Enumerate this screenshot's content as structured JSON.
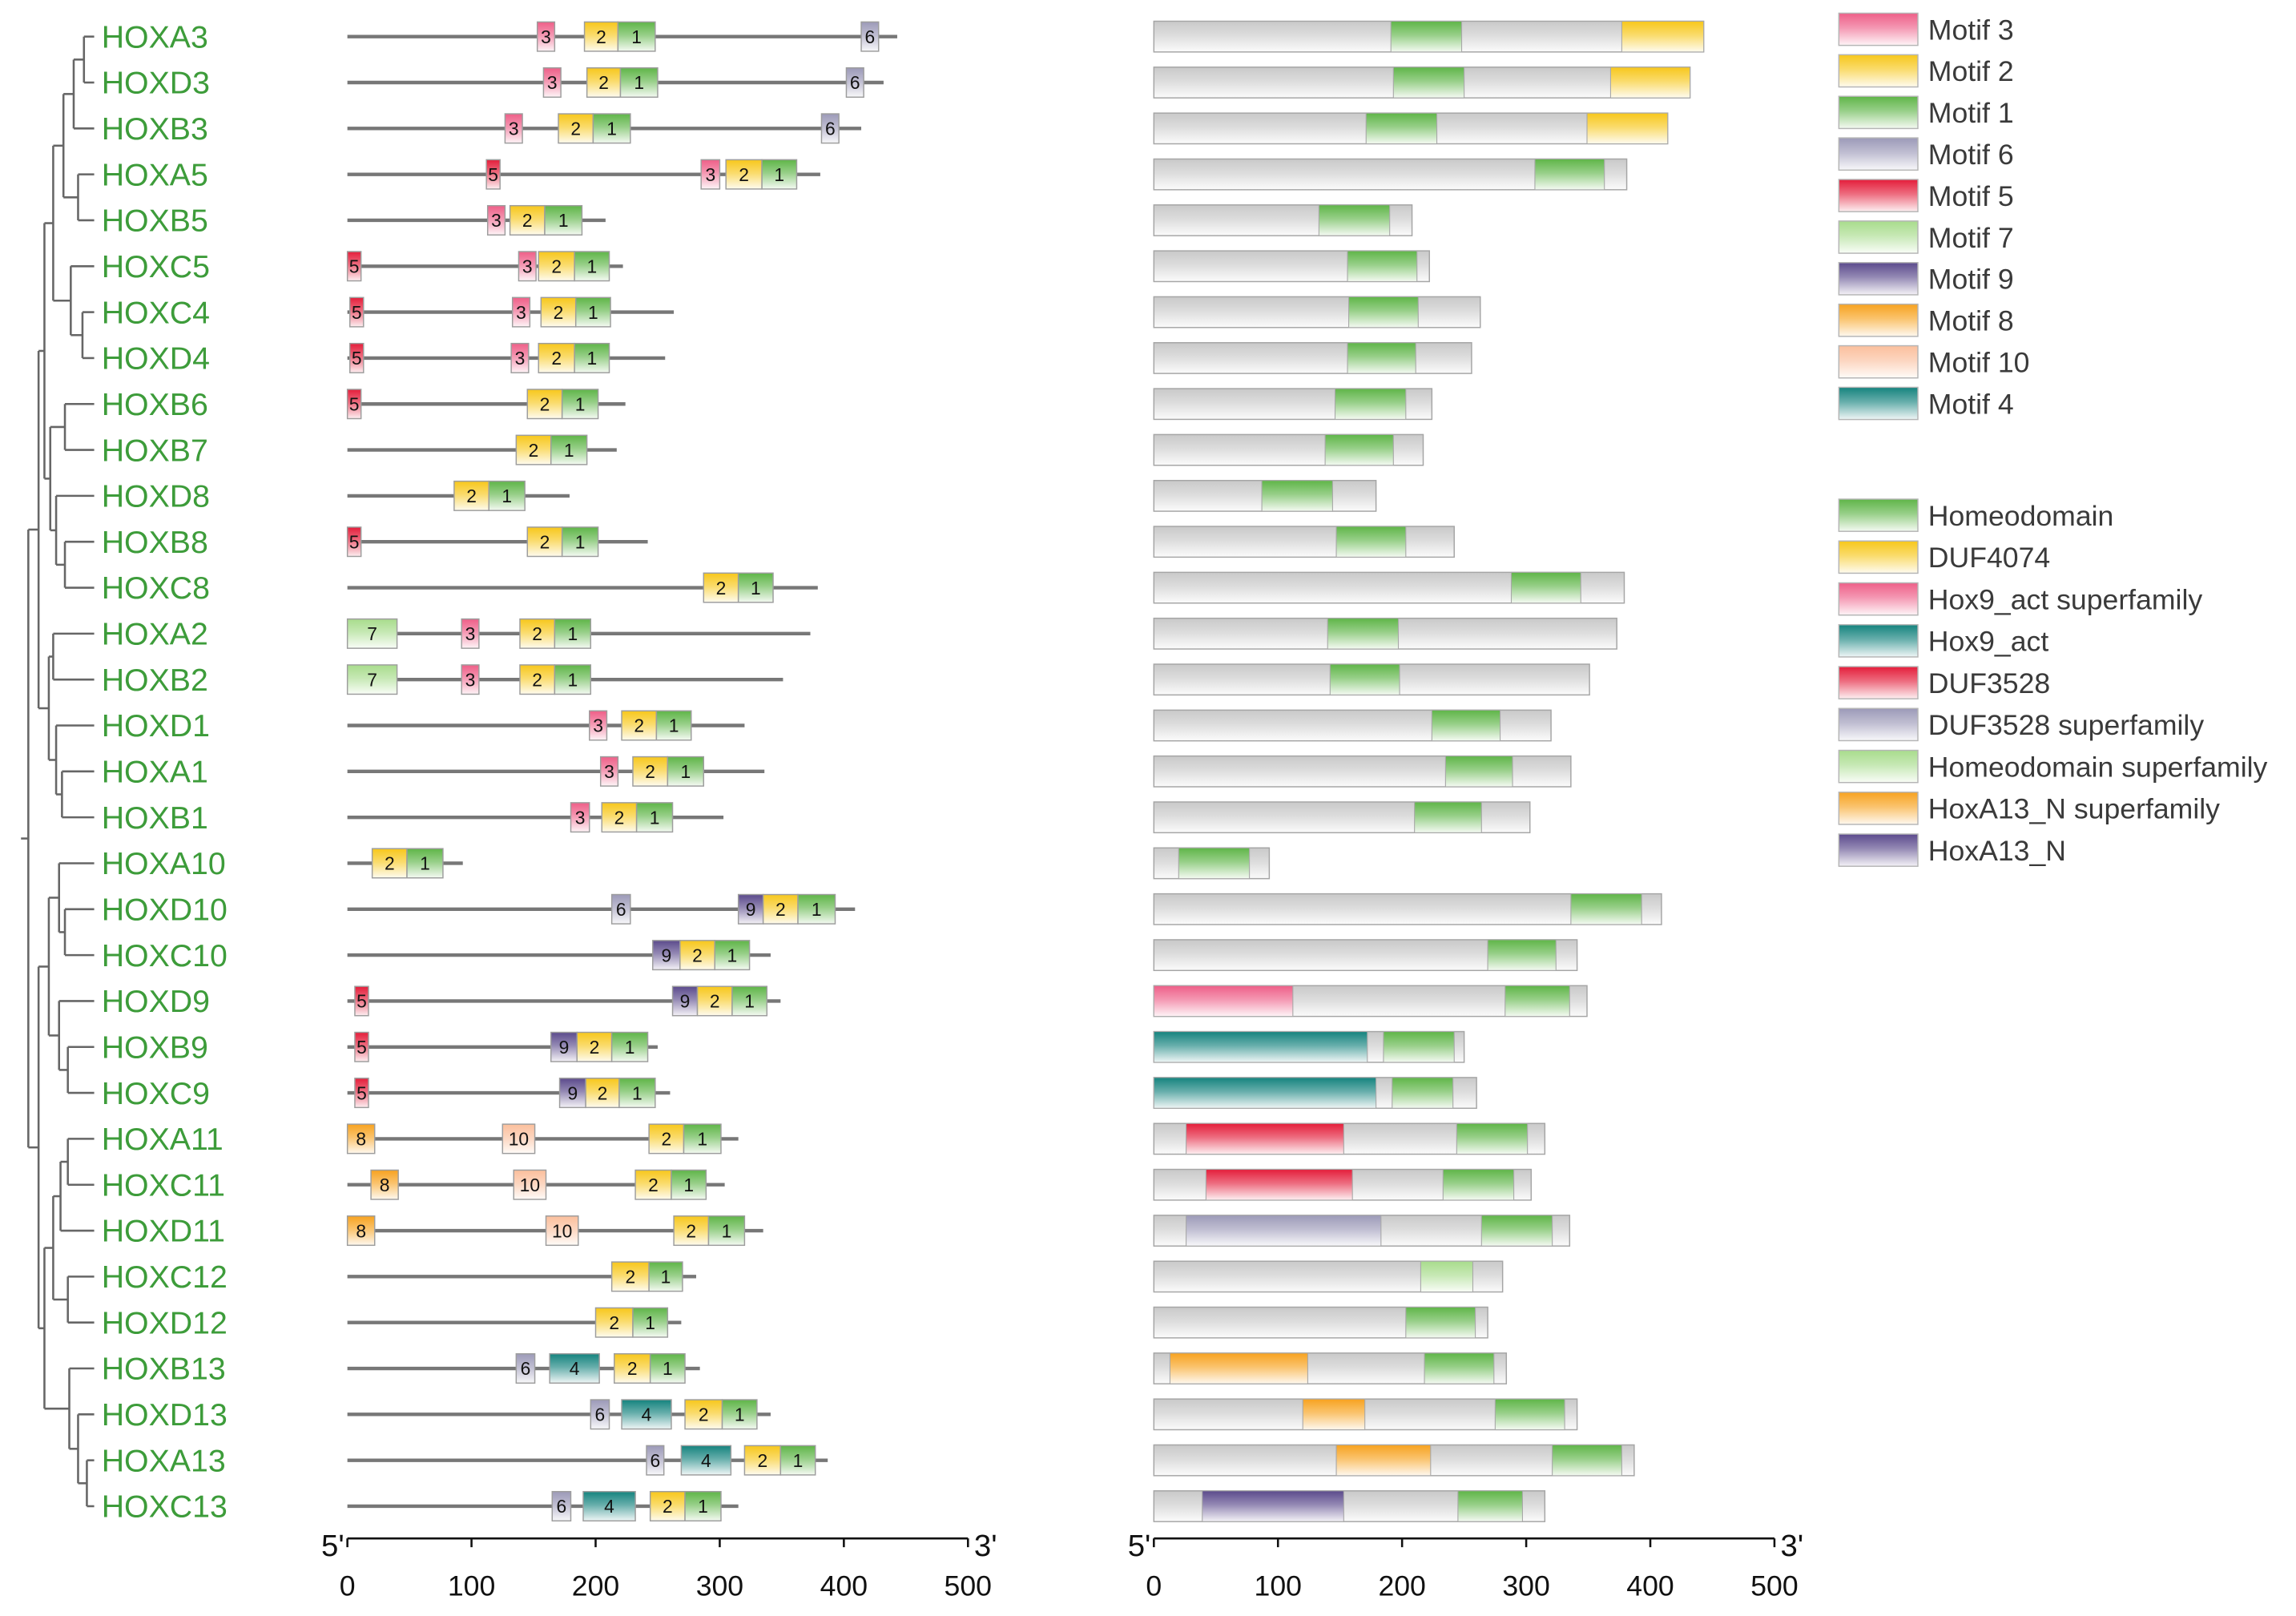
{
  "colors": {
    "gene_label": "#3d9c3a",
    "protein_bar": "#c9c9c9",
    "backbone": "#777777",
    "tree": "#666666",
    "box_stroke": "#9d9d9d"
  },
  "motif_axis": {
    "left_end": "5'",
    "right_end": "3'",
    "max": 500,
    "ticks": [
      "0",
      "100",
      "200",
      "300",
      "400",
      "500"
    ]
  },
  "domain_axis": {
    "left_end": "5'",
    "right_end": "3'",
    "max": 500,
    "ticks": [
      "0",
      "100",
      "200",
      "300",
      "400",
      "500"
    ]
  },
  "motif_legend": [
    {
      "label": "Motif 3",
      "color": "#ee5f88"
    },
    {
      "label": "Motif 2",
      "color": "#f7c71b"
    },
    {
      "label": "Motif 1",
      "color": "#5fb548"
    },
    {
      "label": "Motif 6",
      "color": "#9c9ab8"
    },
    {
      "label": "Motif 5",
      "color": "#e41d3a"
    },
    {
      "label": "Motif 7",
      "color": "#a8dc8c"
    },
    {
      "label": "Motif 9",
      "color": "#5b4a8c"
    },
    {
      "label": "Motif 8",
      "color": "#f7a21f"
    },
    {
      "label": "Motif 10",
      "color": "#fbbf9c"
    },
    {
      "label": "Motif 4",
      "color": "#14837e"
    }
  ],
  "domain_legend": [
    {
      "label": "Homeodomain",
      "color": "#5fb548"
    },
    {
      "label": "DUF4074",
      "color": "#f7c71b"
    },
    {
      "label": "Hox9_act superfamily",
      "color": "#ee5f88"
    },
    {
      "label": "Hox9_act",
      "color": "#14837e"
    },
    {
      "label": "DUF3528",
      "color": "#e41d3a"
    },
    {
      "label": "DUF3528 superfamily",
      "color": "#9c9ab8"
    },
    {
      "label": "Homeodomain superfamily",
      "color": "#a8dc8c"
    },
    {
      "label": "HoxA13_N superfamily",
      "color": "#f7a21f"
    },
    {
      "label": "HoxA13_N",
      "color": "#5b4a8c"
    }
  ],
  "genes": [
    {
      "name": "HOXA3",
      "length": 443,
      "motifs": [
        {
          "label": "3",
          "start": 153,
          "end": 167
        },
        {
          "label": "2",
          "start": 191,
          "end": 218
        },
        {
          "label": "1",
          "start": 218,
          "end": 248
        },
        {
          "label": "6",
          "start": 414,
          "end": 428
        }
      ],
      "domains": [
        {
          "d": 0,
          "start": 191,
          "end": 248
        },
        {
          "d": 1,
          "start": 377,
          "end": 443
        }
      ]
    },
    {
      "name": "HOXD3",
      "length": 432,
      "motifs": [
        {
          "label": "3",
          "start": 158,
          "end": 172
        },
        {
          "label": "2",
          "start": 193,
          "end": 220
        },
        {
          "label": "1",
          "start": 220,
          "end": 250
        },
        {
          "label": "6",
          "start": 402,
          "end": 416
        }
      ],
      "domains": [
        {
          "d": 0,
          "start": 193,
          "end": 250
        },
        {
          "d": 1,
          "start": 368,
          "end": 432
        }
      ]
    },
    {
      "name": "HOXB3",
      "length": 414,
      "motifs": [
        {
          "label": "3",
          "start": 127,
          "end": 141
        },
        {
          "label": "2",
          "start": 170,
          "end": 198
        },
        {
          "label": "1",
          "start": 198,
          "end": 228
        },
        {
          "label": "6",
          "start": 382,
          "end": 396
        }
      ],
      "domains": [
        {
          "d": 0,
          "start": 171,
          "end": 228
        },
        {
          "d": 1,
          "start": 349,
          "end": 414
        }
      ]
    },
    {
      "name": "HOXA5",
      "length": 381,
      "motifs": [
        {
          "label": "5",
          "start": 112,
          "end": 123
        },
        {
          "label": "3",
          "start": 285,
          "end": 300
        },
        {
          "label": "2",
          "start": 305,
          "end": 334
        },
        {
          "label": "1",
          "start": 334,
          "end": 362
        }
      ],
      "domains": [
        {
          "d": 0,
          "start": 307,
          "end": 363
        }
      ]
    },
    {
      "name": "HOXB5",
      "length": 208,
      "motifs": [
        {
          "label": "3",
          "start": 113,
          "end": 127
        },
        {
          "label": "2",
          "start": 131,
          "end": 159
        },
        {
          "label": "1",
          "start": 159,
          "end": 189
        }
      ],
      "domains": [
        {
          "d": 0,
          "start": 133,
          "end": 190
        }
      ]
    },
    {
      "name": "HOXC5",
      "length": 222,
      "motifs": [
        {
          "label": "5",
          "start": 0,
          "end": 11
        },
        {
          "label": "3",
          "start": 138,
          "end": 152
        },
        {
          "label": "2",
          "start": 154,
          "end": 183
        },
        {
          "label": "1",
          "start": 183,
          "end": 211
        }
      ],
      "domains": [
        {
          "d": 0,
          "start": 156,
          "end": 212
        }
      ]
    },
    {
      "name": "HOXC4",
      "length": 263,
      "motifs": [
        {
          "label": "5",
          "start": 2,
          "end": 13
        },
        {
          "label": "3",
          "start": 133,
          "end": 147
        },
        {
          "label": "2",
          "start": 156,
          "end": 184
        },
        {
          "label": "1",
          "start": 184,
          "end": 212
        }
      ],
      "domains": [
        {
          "d": 0,
          "start": 157,
          "end": 213
        }
      ]
    },
    {
      "name": "HOXD4",
      "length": 256,
      "motifs": [
        {
          "label": "5",
          "start": 2,
          "end": 13
        },
        {
          "label": "3",
          "start": 132,
          "end": 146
        },
        {
          "label": "2",
          "start": 154,
          "end": 183
        },
        {
          "label": "1",
          "start": 183,
          "end": 211
        }
      ],
      "domains": [
        {
          "d": 0,
          "start": 156,
          "end": 211
        }
      ]
    },
    {
      "name": "HOXB6",
      "length": 224,
      "motifs": [
        {
          "label": "5",
          "start": 0,
          "end": 11
        },
        {
          "label": "2",
          "start": 145,
          "end": 173
        },
        {
          "label": "1",
          "start": 173,
          "end": 202
        }
      ],
      "domains": [
        {
          "d": 0,
          "start": 146,
          "end": 203
        }
      ]
    },
    {
      "name": "HOXB7",
      "length": 217,
      "motifs": [
        {
          "label": "2",
          "start": 136,
          "end": 164
        },
        {
          "label": "1",
          "start": 164,
          "end": 193
        }
      ],
      "domains": [
        {
          "d": 0,
          "start": 138,
          "end": 193
        }
      ]
    },
    {
      "name": "HOXD8",
      "length": 179,
      "motifs": [
        {
          "label": "2",
          "start": 86,
          "end": 114
        },
        {
          "label": "1",
          "start": 114,
          "end": 143
        }
      ],
      "domains": [
        {
          "d": 0,
          "start": 87,
          "end": 144
        }
      ]
    },
    {
      "name": "HOXB8",
      "length": 242,
      "motifs": [
        {
          "label": "5",
          "start": 0,
          "end": 11
        },
        {
          "label": "2",
          "start": 145,
          "end": 173
        },
        {
          "label": "1",
          "start": 173,
          "end": 202
        }
      ],
      "domains": [
        {
          "d": 0,
          "start": 147,
          "end": 203
        }
      ]
    },
    {
      "name": "HOXC8",
      "length": 379,
      "motifs": [
        {
          "label": "2",
          "start": 287,
          "end": 315
        },
        {
          "label": "1",
          "start": 315,
          "end": 343
        }
      ],
      "domains": [
        {
          "d": 0,
          "start": 288,
          "end": 344
        }
      ]
    },
    {
      "name": "HOXA2",
      "length": 373,
      "motifs": [
        {
          "label": "7",
          "start": 0,
          "end": 40
        },
        {
          "label": "3",
          "start": 92,
          "end": 106
        },
        {
          "label": "2",
          "start": 139,
          "end": 167
        },
        {
          "label": "1",
          "start": 167,
          "end": 196
        }
      ],
      "domains": [
        {
          "d": 0,
          "start": 140,
          "end": 197
        }
      ]
    },
    {
      "name": "HOXB2",
      "length": 351,
      "motifs": [
        {
          "label": "7",
          "start": 0,
          "end": 40
        },
        {
          "label": "3",
          "start": 92,
          "end": 106
        },
        {
          "label": "2",
          "start": 139,
          "end": 167
        },
        {
          "label": "1",
          "start": 167,
          "end": 196
        }
      ],
      "domains": [
        {
          "d": 0,
          "start": 142,
          "end": 198
        }
      ]
    },
    {
      "name": "HOXD1",
      "length": 320,
      "motifs": [
        {
          "label": "3",
          "start": 195,
          "end": 209
        },
        {
          "label": "2",
          "start": 221,
          "end": 249
        },
        {
          "label": "1",
          "start": 249,
          "end": 277
        }
      ],
      "domains": [
        {
          "d": 0,
          "start": 224,
          "end": 279
        }
      ]
    },
    {
      "name": "HOXA1",
      "length": 336,
      "motifs": [
        {
          "label": "3",
          "start": 204,
          "end": 218
        },
        {
          "label": "2",
          "start": 230,
          "end": 258
        },
        {
          "label": "1",
          "start": 258,
          "end": 287
        }
      ],
      "domains": [
        {
          "d": 0,
          "start": 235,
          "end": 289
        }
      ]
    },
    {
      "name": "HOXB1",
      "length": 303,
      "motifs": [
        {
          "label": "3",
          "start": 180,
          "end": 195
        },
        {
          "label": "2",
          "start": 205,
          "end": 233
        },
        {
          "label": "1",
          "start": 233,
          "end": 262
        }
      ],
      "domains": [
        {
          "d": 0,
          "start": 210,
          "end": 264
        }
      ]
    },
    {
      "name": "HOXA10",
      "length": 93,
      "motifs": [
        {
          "label": "2",
          "start": 20,
          "end": 48
        },
        {
          "label": "1",
          "start": 48,
          "end": 77
        }
      ],
      "domains": [
        {
          "d": 0,
          "start": 20,
          "end": 77
        }
      ]
    },
    {
      "name": "HOXD10",
      "length": 409,
      "motifs": [
        {
          "label": "6",
          "start": 213,
          "end": 228
        },
        {
          "label": "9",
          "start": 315,
          "end": 335
        },
        {
          "label": "2",
          "start": 335,
          "end": 363
        },
        {
          "label": "1",
          "start": 363,
          "end": 393
        }
      ],
      "domains": [
        {
          "d": 0,
          "start": 336,
          "end": 393
        }
      ]
    },
    {
      "name": "HOXC10",
      "length": 341,
      "motifs": [
        {
          "label": "9",
          "start": 246,
          "end": 268
        },
        {
          "label": "2",
          "start": 268,
          "end": 296
        },
        {
          "label": "1",
          "start": 296,
          "end": 324
        }
      ],
      "domains": [
        {
          "d": 0,
          "start": 269,
          "end": 324
        }
      ]
    },
    {
      "name": "HOXD9",
      "length": 349,
      "motifs": [
        {
          "label": "5",
          "start": 6,
          "end": 17
        },
        {
          "label": "9",
          "start": 262,
          "end": 282
        },
        {
          "label": "2",
          "start": 282,
          "end": 310
        },
        {
          "label": "1",
          "start": 310,
          "end": 338
        }
      ],
      "domains": [
        {
          "d": 2,
          "start": 0,
          "end": 112
        },
        {
          "d": 0,
          "start": 283,
          "end": 335
        }
      ]
    },
    {
      "name": "HOXB9",
      "length": 250,
      "motifs": [
        {
          "label": "5",
          "start": 6,
          "end": 17
        },
        {
          "label": "9",
          "start": 164,
          "end": 185
        },
        {
          "label": "2",
          "start": 185,
          "end": 213
        },
        {
          "label": "1",
          "start": 213,
          "end": 242
        }
      ],
      "domains": [
        {
          "d": 3,
          "start": 0,
          "end": 172
        },
        {
          "d": 0,
          "start": 185,
          "end": 242
        }
      ]
    },
    {
      "name": "HOXC9",
      "length": 260,
      "motifs": [
        {
          "label": "5",
          "start": 6,
          "end": 17
        },
        {
          "label": "9",
          "start": 171,
          "end": 192
        },
        {
          "label": "2",
          "start": 192,
          "end": 219
        },
        {
          "label": "1",
          "start": 219,
          "end": 248
        }
      ],
      "domains": [
        {
          "d": 3,
          "start": 0,
          "end": 179
        },
        {
          "d": 0,
          "start": 192,
          "end": 241
        }
      ]
    },
    {
      "name": "HOXA11",
      "length": 315,
      "motifs": [
        {
          "label": "8",
          "start": 0,
          "end": 22
        },
        {
          "label": "10",
          "start": 125,
          "end": 151
        },
        {
          "label": "2",
          "start": 243,
          "end": 271
        },
        {
          "label": "1",
          "start": 271,
          "end": 301
        }
      ],
      "domains": [
        {
          "d": 4,
          "start": 26,
          "end": 153
        },
        {
          "d": 0,
          "start": 244,
          "end": 301
        }
      ]
    },
    {
      "name": "HOXC11",
      "length": 304,
      "motifs": [
        {
          "label": "8",
          "start": 19,
          "end": 41
        },
        {
          "label": "10",
          "start": 134,
          "end": 160
        },
        {
          "label": "2",
          "start": 232,
          "end": 261
        },
        {
          "label": "1",
          "start": 261,
          "end": 289
        }
      ],
      "domains": [
        {
          "d": 4,
          "start": 42,
          "end": 160
        },
        {
          "d": 0,
          "start": 233,
          "end": 290
        }
      ]
    },
    {
      "name": "HOXD11",
      "length": 335,
      "motifs": [
        {
          "label": "8",
          "start": 0,
          "end": 22
        },
        {
          "label": "10",
          "start": 160,
          "end": 186
        },
        {
          "label": "2",
          "start": 263,
          "end": 291
        },
        {
          "label": "1",
          "start": 291,
          "end": 320
        }
      ],
      "domains": [
        {
          "d": 5,
          "start": 26,
          "end": 183
        },
        {
          "d": 0,
          "start": 264,
          "end": 321
        }
      ]
    },
    {
      "name": "HOXC12",
      "length": 281,
      "motifs": [
        {
          "label": "2",
          "start": 213,
          "end": 243
        },
        {
          "label": "1",
          "start": 243,
          "end": 270
        }
      ],
      "domains": [
        {
          "d": 6,
          "start": 215,
          "end": 257
        }
      ]
    },
    {
      "name": "HOXD12",
      "length": 269,
      "motifs": [
        {
          "label": "2",
          "start": 200,
          "end": 230
        },
        {
          "label": "1",
          "start": 230,
          "end": 258
        }
      ],
      "domains": [
        {
          "d": 0,
          "start": 203,
          "end": 259
        }
      ]
    },
    {
      "name": "HOXB13",
      "length": 284,
      "motifs": [
        {
          "label": "6",
          "start": 136,
          "end": 151
        },
        {
          "label": "4",
          "start": 163,
          "end": 203
        },
        {
          "label": "2",
          "start": 215,
          "end": 244
        },
        {
          "label": "1",
          "start": 244,
          "end": 272
        }
      ],
      "domains": [
        {
          "d": 7,
          "start": 13,
          "end": 124
        },
        {
          "d": 0,
          "start": 218,
          "end": 274
        }
      ]
    },
    {
      "name": "HOXD13",
      "length": 341,
      "motifs": [
        {
          "label": "6",
          "start": 196,
          "end": 211
        },
        {
          "label": "4",
          "start": 221,
          "end": 261
        },
        {
          "label": "2",
          "start": 272,
          "end": 302
        },
        {
          "label": "1",
          "start": 302,
          "end": 330
        }
      ],
      "domains": [
        {
          "d": 7,
          "start": 120,
          "end": 170
        },
        {
          "d": 0,
          "start": 275,
          "end": 331
        }
      ]
    },
    {
      "name": "HOXA13",
      "length": 387,
      "motifs": [
        {
          "label": "6",
          "start": 241,
          "end": 255
        },
        {
          "label": "4",
          "start": 269,
          "end": 309
        },
        {
          "label": "2",
          "start": 320,
          "end": 349
        },
        {
          "label": "1",
          "start": 349,
          "end": 377
        }
      ],
      "domains": [
        {
          "d": 7,
          "start": 147,
          "end": 223
        },
        {
          "d": 0,
          "start": 321,
          "end": 377
        }
      ]
    },
    {
      "name": "HOXC13",
      "length": 315,
      "motifs": [
        {
          "label": "6",
          "start": 165,
          "end": 180
        },
        {
          "label": "4",
          "start": 190,
          "end": 232
        },
        {
          "label": "2",
          "start": 244,
          "end": 272
        },
        {
          "label": "1",
          "start": 272,
          "end": 301
        }
      ],
      "domains": [
        {
          "d": 8,
          "start": 39,
          "end": 153
        },
        {
          "d": 0,
          "start": 245,
          "end": 297
        }
      ]
    }
  ]
}
